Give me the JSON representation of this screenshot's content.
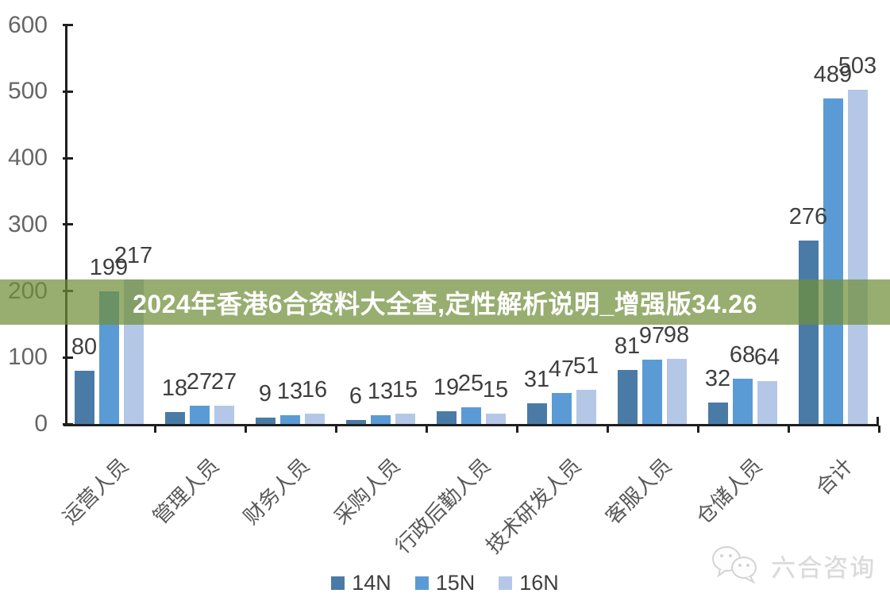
{
  "banner": {
    "text": "2024年香港6合资料大全查,定性解析说明_增强版34.26",
    "bg_color": "rgba(112,143,57,0.72)",
    "text_color": "#ffffff"
  },
  "watermark": {
    "label": "六合咨询",
    "icon": "wechat-chat-bubbles-icon",
    "color": "#d9d9d9"
  },
  "chart_data": {
    "type": "bar",
    "title": "",
    "xlabel": "",
    "ylabel": "",
    "categories": [
      "运营人员",
      "管理人员",
      "财务人员",
      "采购人员",
      "行政后勤人员",
      "技术研发人员",
      "客服人员",
      "仓储人员",
      "合计"
    ],
    "series": [
      {
        "name": "14N",
        "color": "#4a7ba6",
        "values": [
          80,
          18,
          9,
          6,
          19,
          31,
          81,
          32,
          276
        ]
      },
      {
        "name": "15N",
        "color": "#5b9bd5",
        "values": [
          199,
          27,
          13,
          13,
          25,
          47,
          97,
          68,
          489
        ]
      },
      {
        "name": "16N",
        "color": "#b4c7e7",
        "values": [
          217,
          27,
          16,
          15,
          15,
          51,
          98,
          64,
          503
        ]
      }
    ],
    "y_ticks": [
      0,
      100,
      200,
      300,
      400,
      500,
      600
    ],
    "ylim": [
      0,
      600
    ],
    "grid": false,
    "legend_position": "bottom",
    "value_labels": true,
    "axis_color": "#1f1f1f",
    "tick_label_color": "#666666",
    "value_label_color": "#3f3f3f",
    "category_label_color": "#595959"
  }
}
